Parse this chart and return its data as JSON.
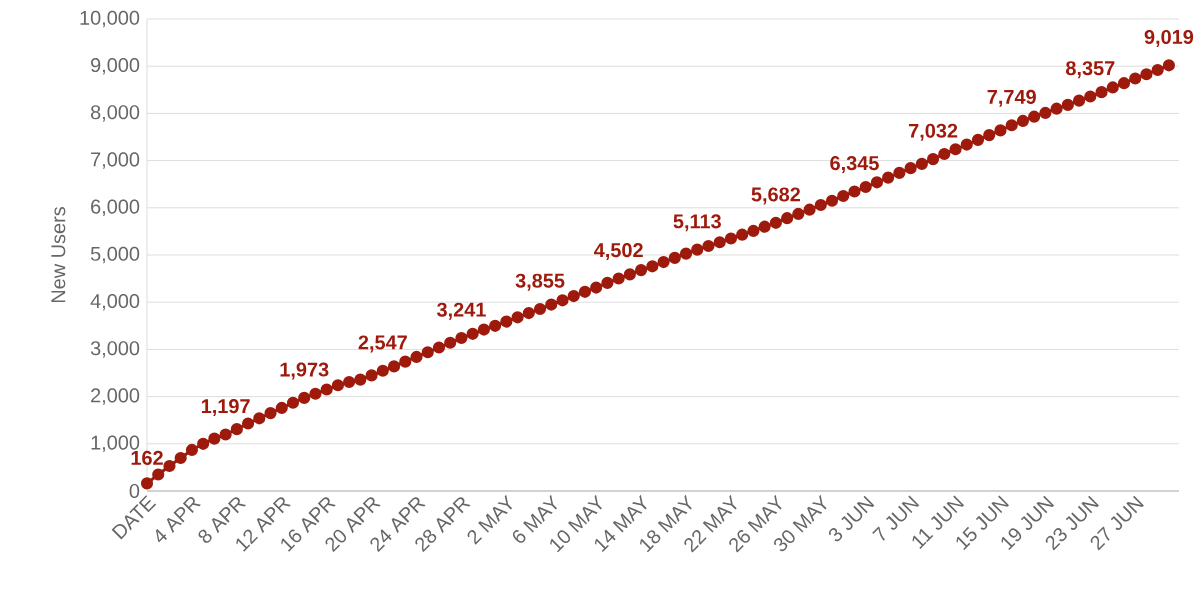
{
  "chart_data": {
    "type": "line",
    "ylabel": "New Users",
    "categories": [
      "DATE",
      null,
      null,
      null,
      "4 APR",
      null,
      null,
      null,
      "8 APR",
      null,
      null,
      null,
      "12 APR",
      null,
      null,
      null,
      "16 APR",
      null,
      null,
      null,
      "20 APR",
      null,
      null,
      null,
      "24 APR",
      null,
      null,
      null,
      "28 APR",
      null,
      null,
      null,
      "2 MAY",
      null,
      null,
      null,
      "6 MAY",
      null,
      null,
      null,
      "10 MAY",
      null,
      null,
      null,
      "14 MAY",
      null,
      null,
      null,
      "18 MAY",
      null,
      null,
      null,
      "22 MAY",
      null,
      null,
      null,
      "26 MAY",
      null,
      null,
      null,
      "30 MAY",
      null,
      null,
      null,
      "3 JUN",
      null,
      null,
      null,
      "7 JUN",
      null,
      null,
      null,
      "11 JUN",
      null,
      null,
      null,
      "15 JUN",
      null,
      null,
      null,
      "19 JUN",
      null,
      null,
      null,
      "23 JUN",
      null,
      null,
      null,
      "27 JUN",
      null,
      null,
      null
    ],
    "values": [
      162,
      350,
      530,
      700,
      870,
      1000,
      1110,
      1197,
      1310,
      1430,
      1540,
      1650,
      1760,
      1870,
      1973,
      2060,
      2150,
      2240,
      2310,
      2360,
      2450,
      2547,
      2640,
      2740,
      2840,
      2940,
      3040,
      3140,
      3241,
      3330,
      3420,
      3500,
      3590,
      3680,
      3770,
      3855,
      3950,
      4040,
      4130,
      4220,
      4310,
      4410,
      4502,
      4590,
      4680,
      4760,
      4850,
      4940,
      5030,
      5113,
      5190,
      5270,
      5350,
      5430,
      5510,
      5600,
      5682,
      5780,
      5870,
      5960,
      6060,
      6150,
      6250,
      6345,
      6440,
      6540,
      6640,
      6740,
      6840,
      6930,
      7032,
      7140,
      7240,
      7340,
      7440,
      7540,
      7640,
      7749,
      7840,
      7930,
      8010,
      8100,
      8180,
      8270,
      8357,
      8450,
      8550,
      8640,
      8740,
      8830,
      8920,
      9019
    ],
    "value_labels": [
      "162",
      null,
      null,
      null,
      null,
      null,
      null,
      "1,197",
      null,
      null,
      null,
      null,
      null,
      null,
      "1,973",
      null,
      null,
      null,
      null,
      null,
      null,
      "2,547",
      null,
      null,
      null,
      null,
      null,
      null,
      "3,241",
      null,
      null,
      null,
      null,
      null,
      null,
      "3,855",
      null,
      null,
      null,
      null,
      null,
      null,
      "4,502",
      null,
      null,
      null,
      null,
      null,
      null,
      "5,113",
      null,
      null,
      null,
      null,
      null,
      null,
      "5,682",
      null,
      null,
      null,
      null,
      null,
      null,
      "6,345",
      null,
      null,
      null,
      null,
      null,
      null,
      "7,032",
      null,
      null,
      null,
      null,
      null,
      null,
      "7,749",
      null,
      null,
      null,
      null,
      null,
      null,
      "8,357",
      null,
      null,
      null,
      null,
      null,
      null,
      "9,019"
    ],
    "color": "#9e1a0c",
    "ylim": [
      0,
      10000
    ],
    "yticks": [
      {
        "value": 0,
        "label": "0"
      },
      {
        "value": 1000,
        "label": "1,000"
      },
      {
        "value": 2000,
        "label": "2,000"
      },
      {
        "value": 3000,
        "label": "3,000"
      },
      {
        "value": 4000,
        "label": "4,000"
      },
      {
        "value": 5000,
        "label": "5,000"
      },
      {
        "value": 6000,
        "label": "6,000"
      },
      {
        "value": 7000,
        "label": "7,000"
      },
      {
        "value": 8000,
        "label": "8,000"
      },
      {
        "value": 9000,
        "label": "9,000"
      },
      {
        "value": 10000,
        "label": "10,000"
      }
    ],
    "grid": "y",
    "marker": "circle",
    "line_style": "solid"
  }
}
